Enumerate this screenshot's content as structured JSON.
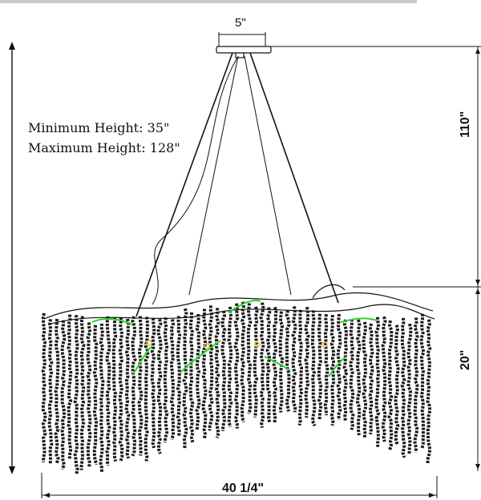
{
  "labels": {
    "canopy_width": "5\"",
    "minimum_height": "Minimum Height: 35\"",
    "maximum_height": "Maximum Height: 128\"",
    "drop_height": "110\"",
    "body_height": "20\"",
    "overall_width": "40 1/4\""
  },
  "colors": {
    "line": "#111111",
    "crystal": "#1a1a1a",
    "highlight": "#2fd12f",
    "accent": "#e2c23a"
  }
}
